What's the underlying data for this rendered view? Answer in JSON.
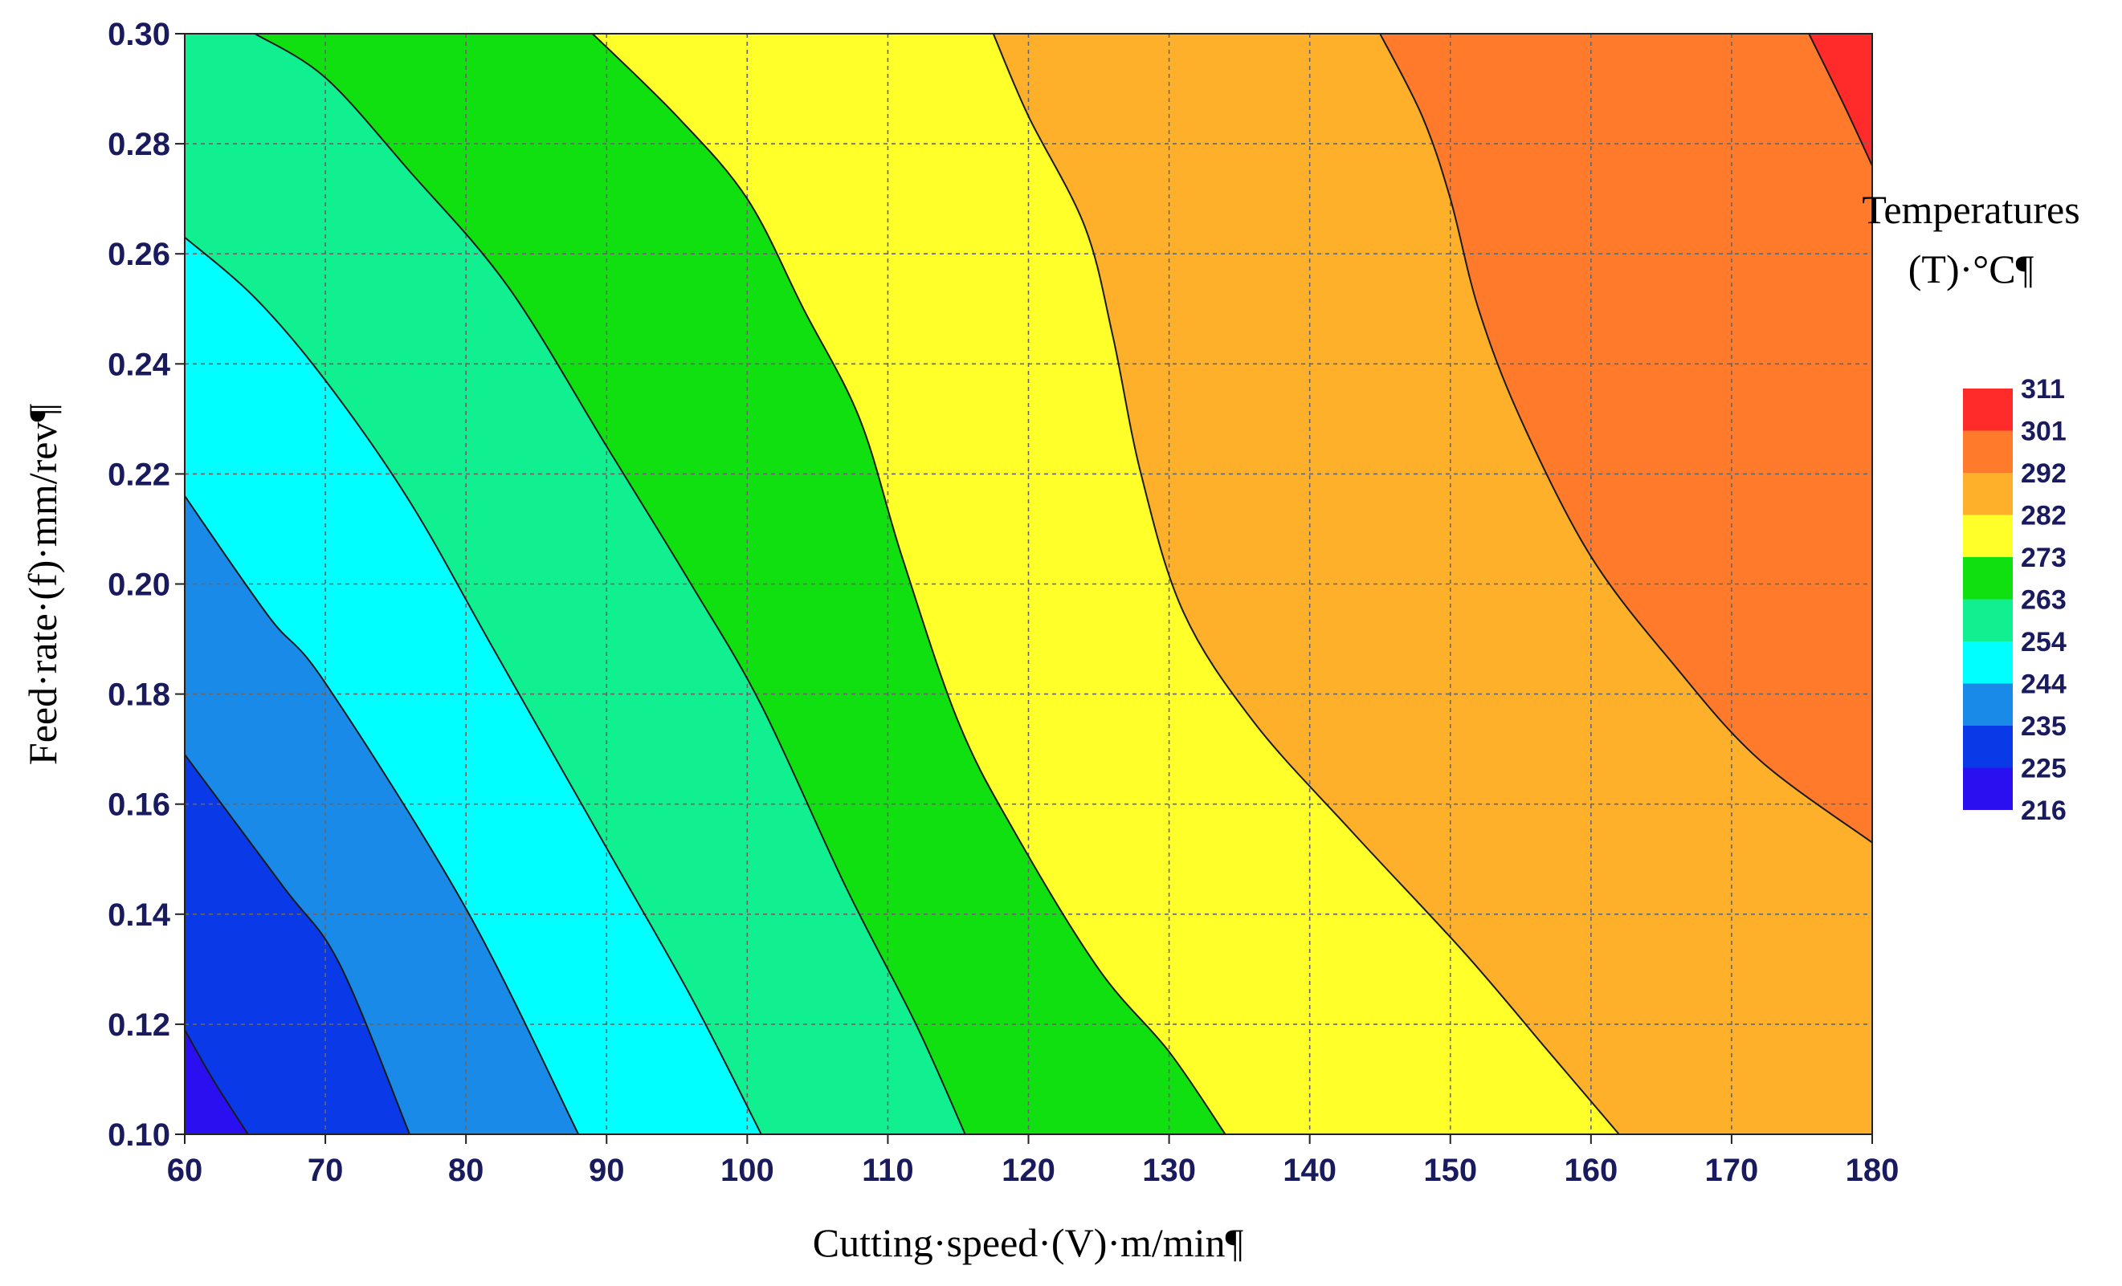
{
  "chart_data": {
    "type": "contour",
    "title": "",
    "xlabel": "Cutting·speed·(V)·m/min¶",
    "ylabel": "Feed·rate·(f)·mm/rev¶",
    "legend_title": [
      "Temperatures",
      "(T)·°C¶"
    ],
    "legend_position": "right",
    "grid": true,
    "xlim": [
      60,
      180
    ],
    "ylim": [
      0.1,
      0.3
    ],
    "x_ticks": [
      "60",
      "70",
      "80",
      "90",
      "100",
      "110",
      "120",
      "130",
      "140",
      "150",
      "160",
      "170",
      "180"
    ],
    "y_ticks": [
      "0.10",
      "0.12",
      "0.14",
      "0.16",
      "0.18",
      "0.20",
      "0.22",
      "0.24",
      "0.26",
      "0.28",
      "0.30"
    ],
    "levels": [
      {
        "label": "311",
        "color": "#ff2a2a"
      },
      {
        "label": "301",
        "color": "#ff7a2a"
      },
      {
        "label": "292",
        "color": "#ffb02a"
      },
      {
        "label": "282",
        "color": "#ffff2a"
      },
      {
        "label": "273",
        "color": "#10e010"
      },
      {
        "label": "263",
        "color": "#10f090"
      },
      {
        "label": "254",
        "color": "#00ffff"
      },
      {
        "label": "244",
        "color": "#1a8ae8"
      },
      {
        "label": "235",
        "color": "#0a3ae8"
      },
      {
        "label": "225",
        "color": "#2a10f0"
      },
      {
        "label": "216",
        "color": ""
      }
    ],
    "contour_lines": [
      {
        "points": [
          [
            60,
            0.119
          ],
          [
            62,
            0.11
          ],
          [
            64.5,
            0.1
          ]
        ]
      },
      {
        "points": [
          [
            60,
            0.169
          ],
          [
            67,
            0.145
          ],
          [
            71,
            0.131
          ],
          [
            76,
            0.1
          ]
        ]
      },
      {
        "points": [
          [
            60,
            0.216
          ],
          [
            66,
            0.194
          ],
          [
            70,
            0.182
          ],
          [
            80,
            0.141
          ],
          [
            88,
            0.1
          ]
        ]
      },
      {
        "points": [
          [
            60,
            0.263
          ],
          [
            65,
            0.252
          ],
          [
            70,
            0.237
          ],
          [
            76,
            0.215
          ],
          [
            82,
            0.188
          ],
          [
            90,
            0.152
          ],
          [
            96,
            0.125
          ],
          [
            101,
            0.1
          ]
        ]
      },
      {
        "points": [
          [
            65,
            0.3
          ],
          [
            70,
            0.292
          ],
          [
            76,
            0.275
          ],
          [
            83,
            0.254
          ],
          [
            90,
            0.225
          ],
          [
            96,
            0.2
          ],
          [
            101,
            0.178
          ],
          [
            107,
            0.145
          ],
          [
            112,
            0.12
          ],
          [
            115.5,
            0.1
          ]
        ]
      },
      {
        "points": [
          [
            89,
            0.3
          ],
          [
            95,
            0.285
          ],
          [
            100,
            0.27
          ],
          [
            104,
            0.25
          ],
          [
            108,
            0.23
          ],
          [
            111,
            0.205
          ],
          [
            115,
            0.175
          ],
          [
            119,
            0.155
          ],
          [
            125,
            0.13
          ],
          [
            130,
            0.115
          ],
          [
            134,
            0.1
          ]
        ]
      },
      {
        "points": [
          [
            117.5,
            0.3
          ],
          [
            120,
            0.285
          ],
          [
            124,
            0.265
          ],
          [
            126,
            0.245
          ],
          [
            128,
            0.22
          ],
          [
            131,
            0.195
          ],
          [
            136,
            0.175
          ],
          [
            143,
            0.155
          ],
          [
            151,
            0.133
          ],
          [
            157,
            0.115
          ],
          [
            162,
            0.1
          ]
        ]
      },
      {
        "points": [
          [
            145,
            0.3
          ],
          [
            148,
            0.285
          ],
          [
            150,
            0.27
          ],
          [
            152,
            0.25
          ],
          [
            155,
            0.23
          ],
          [
            160,
            0.205
          ],
          [
            166,
            0.185
          ],
          [
            172,
            0.168
          ],
          [
            180,
            0.153
          ]
        ]
      },
      {
        "points": [
          [
            175.5,
            0.3
          ],
          [
            178,
            0.287
          ],
          [
            180,
            0.276
          ]
        ]
      }
    ]
  }
}
